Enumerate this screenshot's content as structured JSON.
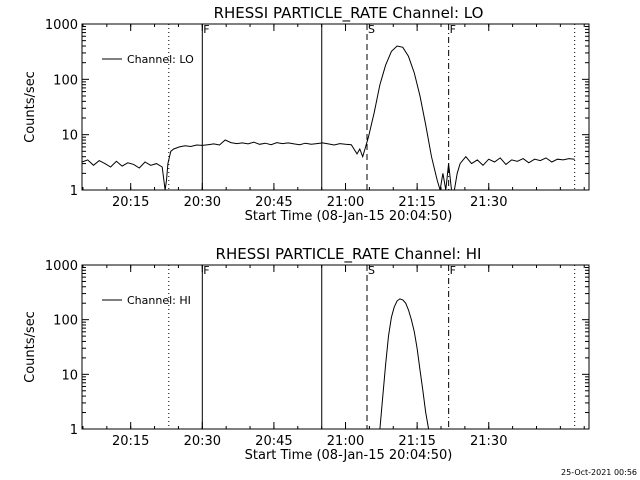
{
  "footer_date": "25-Oct-2021 00:56",
  "chart_data": [
    {
      "type": "line",
      "title": "RHESSI PARTICLE_RATE Channel: LO",
      "xlabel": "Start Time (08-Jan-15 20:04:50)",
      "ylabel": "Counts/sec",
      "yscale": "log",
      "ylim": [
        1,
        1000
      ],
      "xlim_minutes": [
        20.08,
        21.85
      ],
      "x_tick_labels": [
        "20:15",
        "20:30",
        "20:45",
        "21:00",
        "21:15",
        "21:30"
      ],
      "x_tick_minutes": [
        20.25,
        20.5,
        20.75,
        21.0,
        21.25,
        21.5
      ],
      "y_tick_labels": [
        "1",
        "10",
        "100",
        "1000"
      ],
      "y_tick_values": [
        1,
        10,
        100,
        1000
      ],
      "legend": "Channel: LO",
      "legend_position": "top-left",
      "markers": [
        {
          "label": "",
          "style": "dotted",
          "x": 20.383
        },
        {
          "label": "F",
          "style": "solid",
          "x": 20.5
        },
        {
          "label": "",
          "style": "solid",
          "x": 20.917
        },
        {
          "label": "S",
          "style": "dashed",
          "x": 21.075
        },
        {
          "label": "F",
          "style": "dashdot",
          "x": 21.36
        },
        {
          "label": "",
          "style": "dotted",
          "x": 21.8
        }
      ],
      "series": [
        {
          "x": [
            20.08,
            20.1,
            20.12,
            20.14,
            20.16,
            20.18,
            20.2,
            20.22,
            20.24,
            20.26,
            20.28,
            20.3,
            20.32,
            20.34,
            20.36,
            20.37,
            20.375,
            20.38,
            20.39,
            20.4,
            20.42,
            20.44,
            20.46,
            20.48,
            20.5,
            20.52,
            20.54,
            20.56,
            20.58,
            20.6,
            20.62,
            20.64,
            20.66,
            20.68,
            20.7,
            20.72,
            20.74,
            20.76,
            20.78,
            20.8,
            20.82,
            20.84,
            20.86,
            20.88,
            20.9,
            20.92,
            20.94,
            20.96,
            20.98,
            21.0,
            21.02,
            21.04,
            21.05,
            21.06,
            21.07,
            21.08,
            21.1,
            21.12,
            21.14,
            21.16,
            21.18,
            21.2,
            21.22,
            21.24,
            21.26,
            21.28,
            21.3,
            21.32,
            21.33,
            21.34,
            21.35,
            21.36,
            21.37,
            21.38,
            21.39,
            21.4,
            21.42,
            21.44,
            21.46,
            21.48,
            21.5,
            21.52,
            21.54,
            21.56,
            21.58,
            21.6,
            21.62,
            21.64,
            21.66,
            21.68,
            21.7,
            21.72,
            21.74,
            21.76,
            21.78,
            21.8
          ],
          "values": [
            3.2,
            3.5,
            2.8,
            3.4,
            3.0,
            2.6,
            3.3,
            2.7,
            3.1,
            2.9,
            2.5,
            3.2,
            2.8,
            3.0,
            2.6,
            1.0,
            1.5,
            3.0,
            5.0,
            5.5,
            6.0,
            6.3,
            6.1,
            6.5,
            6.4,
            6.6,
            6.8,
            6.5,
            8.0,
            7.2,
            6.9,
            7.1,
            6.8,
            7.3,
            6.7,
            7.0,
            6.6,
            7.2,
            6.9,
            7.1,
            6.8,
            6.6,
            7.0,
            6.7,
            6.9,
            7.1,
            6.8,
            6.5,
            6.9,
            6.7,
            6.6,
            4.5,
            5.5,
            4.0,
            6.0,
            9.0,
            25,
            80,
            180,
            320,
            400,
            380,
            260,
            130,
            50,
            15,
            4.0,
            1.5,
            1.0,
            2.0,
            1.0,
            3.0,
            1.0,
            1.0,
            2.0,
            3.0,
            4.0,
            3.0,
            3.5,
            2.8,
            3.6,
            3.2,
            3.8,
            2.9,
            3.5,
            3.3,
            3.7,
            3.1,
            3.6,
            3.4,
            3.8,
            3.2,
            3.6,
            3.5,
            3.7,
            3.6
          ]
        }
      ]
    },
    {
      "type": "line",
      "title": "RHESSI PARTICLE_RATE Channel: HI",
      "xlabel": "Start Time (08-Jan-15 20:04:50)",
      "ylabel": "Counts/sec",
      "yscale": "log",
      "ylim": [
        1,
        1000
      ],
      "xlim_minutes": [
        20.08,
        21.85
      ],
      "x_tick_labels": [
        "20:15",
        "20:30",
        "20:45",
        "21:00",
        "21:15",
        "21:30"
      ],
      "x_tick_minutes": [
        20.25,
        20.5,
        20.75,
        21.0,
        21.25,
        21.5
      ],
      "y_tick_labels": [
        "1",
        "10",
        "100",
        "1000"
      ],
      "y_tick_values": [
        1,
        10,
        100,
        1000
      ],
      "legend": "Channel: HI",
      "legend_position": "top-left",
      "markers": [
        {
          "label": "",
          "style": "dotted",
          "x": 20.383
        },
        {
          "label": "F",
          "style": "solid",
          "x": 20.5
        },
        {
          "label": "",
          "style": "solid",
          "x": 20.917
        },
        {
          "label": "S",
          "style": "dashed",
          "x": 21.075
        },
        {
          "label": "F",
          "style": "dashdot",
          "x": 21.36
        },
        {
          "label": "",
          "style": "dotted",
          "x": 21.8
        }
      ],
      "series": [
        {
          "x": [
            21.12,
            21.13,
            21.14,
            21.15,
            21.16,
            21.17,
            21.18,
            21.19,
            21.2,
            21.21,
            21.22,
            21.23,
            21.24,
            21.25,
            21.26,
            21.27,
            21.28,
            21.29
          ],
          "values": [
            1.0,
            4.0,
            15,
            50,
            110,
            170,
            220,
            240,
            230,
            200,
            150,
            100,
            60,
            30,
            12,
            5,
            2,
            1.0
          ]
        }
      ]
    }
  ]
}
